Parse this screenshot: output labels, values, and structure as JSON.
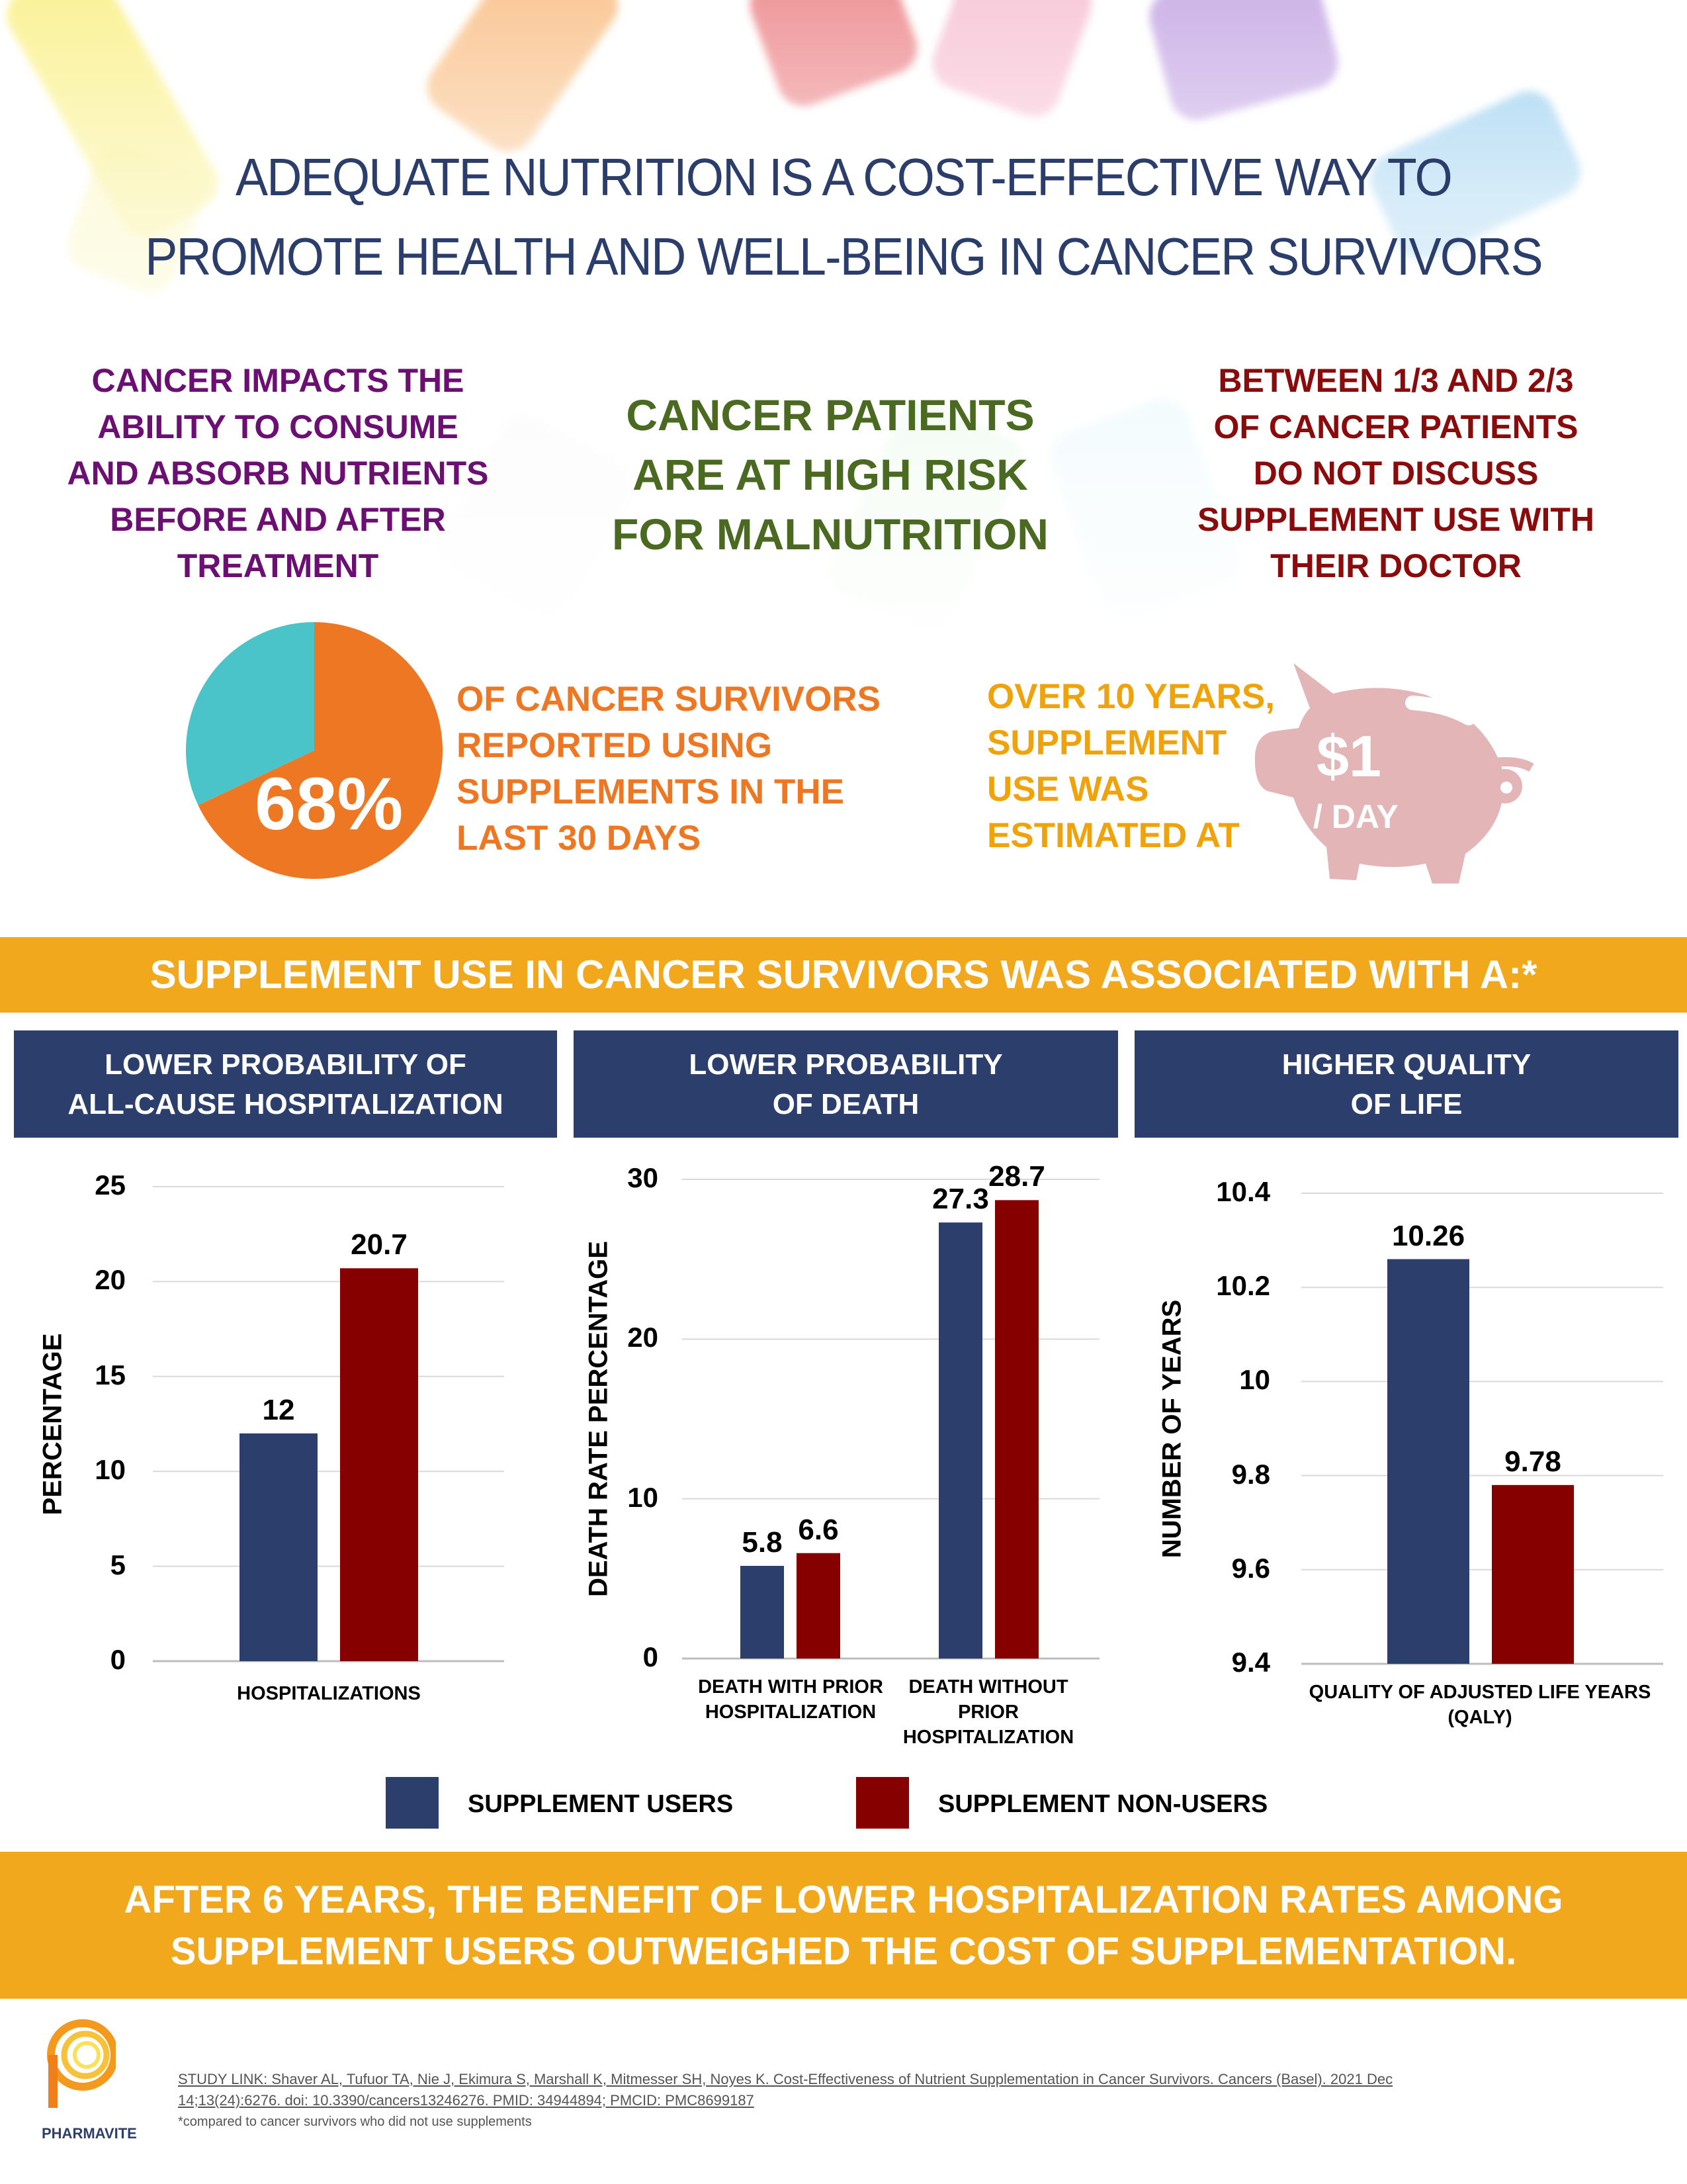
{
  "title": {
    "line1": "ADEQUATE NUTRITION IS A COST-EFFECTIVE WAY TO",
    "line2": "PROMOTE HEALTH AND WELL-BEING IN CANCER SURVIVORS"
  },
  "facts": {
    "left": "CANCER IMPACTS THE\nABILITY TO CONSUME\nAND ABSORB NUTRIENTS\nBEFORE AND AFTER\nTREATMENT",
    "middle": "CANCER PATIENTS\nARE AT HIGH RISK\nFOR MALNUTRITION",
    "right": "BETWEEN 1/3 AND 2/3\nOF CANCER PATIENTS\nDO NOT DISCUSS\nSUPPLEMENT USE WITH\nTHEIR DOCTOR"
  },
  "supplement_stat": {
    "percent_label": "68%",
    "percent_value": 68,
    "text": "OF CANCER SURVIVORS\nREPORTED USING\nSUPPLEMENTS IN THE\nLAST 30 DAYS",
    "colors": {
      "users": "#ee7724",
      "rest": "#4bc4c9"
    }
  },
  "cost_stat": {
    "text": "OVER 10 YEARS,\nSUPPLEMENT\nUSE WAS\nESTIMATED AT",
    "amount": "$1",
    "unit": "/ DAY",
    "icon": "piggy-bank-icon"
  },
  "banner_top": "SUPPLEMENT USE IN CANCER SURVIVORS WAS ASSOCIATED WITH A:*",
  "panels": [
    {
      "header": "LOWER PROBABILITY OF\nALL-CAUSE HOSPITALIZATION"
    },
    {
      "header": "LOWER PROBABILITY\nOF DEATH"
    },
    {
      "header": "HIGHER QUALITY\nOF LIFE"
    }
  ],
  "chart_data": [
    {
      "type": "bar",
      "ylabel": "PERCENTAGE",
      "ylim": [
        0,
        25
      ],
      "yticks": [
        "0",
        "5",
        "10",
        "15",
        "20",
        "25"
      ],
      "grid": true,
      "categories": [
        "HOSPITALIZATIONS"
      ],
      "series": [
        {
          "name": "SUPPLEMENT USERS",
          "values": [
            12
          ],
          "labels": [
            "12"
          ]
        },
        {
          "name": "SUPPLEMENT NON-USERS",
          "values": [
            20.7
          ],
          "labels": [
            "20.7"
          ]
        }
      ]
    },
    {
      "type": "bar",
      "ylabel": "DEATH RATE PERCENTAGE",
      "ylim": [
        0,
        30
      ],
      "yticks": [
        "0",
        "10",
        "20",
        "30"
      ],
      "grid": true,
      "categories": [
        "DEATH WITH PRIOR HOSPITALIZATION",
        "DEATH WITHOUT PRIOR HOSPITALIZATION"
      ],
      "series": [
        {
          "name": "SUPPLEMENT USERS",
          "values": [
            5.8,
            27.3
          ],
          "labels": [
            "5.8",
            "27.3"
          ]
        },
        {
          "name": "SUPPLEMENT NON-USERS",
          "values": [
            6.6,
            28.7
          ],
          "labels": [
            "6.6",
            "28.7"
          ]
        }
      ]
    },
    {
      "type": "bar",
      "ylabel": "NUMBER OF YEARS",
      "ylim": [
        9.4,
        10.4
      ],
      "yticks": [
        "9.4",
        "9.6",
        "9.8",
        "10",
        "10.2",
        "10.4"
      ],
      "grid": true,
      "categories": [
        "QUALITY OF ADJUSTED LIFE YEARS (QALY)"
      ],
      "series": [
        {
          "name": "SUPPLEMENT USERS",
          "values": [
            10.26
          ],
          "labels": [
            "10.26"
          ]
        },
        {
          "name": "SUPPLEMENT NON-USERS",
          "values": [
            9.78
          ],
          "labels": [
            "9.78"
          ]
        }
      ]
    }
  ],
  "legend": {
    "users": "SUPPLEMENT USERS",
    "nonusers": "SUPPLEMENT NON-USERS",
    "colors": {
      "users": "#2c3e6c",
      "nonusers": "#860000"
    },
    "position": "bottom"
  },
  "banner_bottom": "AFTER 6 YEARS, THE BENEFIT OF LOWER HOSPITALIZATION RATES AMONG\nSUPPLEMENT USERS OUTWEIGHED THE COST OF SUPPLEMENTATION.",
  "footer": {
    "logo_text": "PHARMAVITE",
    "study_link": "STUDY LINK: Shaver AL, Tufuor TA, Nie J, Ekimura S, Marshall K, Mitmesser SH, Noyes K. Cost-Effectiveness of Nutrient Supplementation in Cancer Survivors. Cancers (Basel). 2021 Dec 14;13(24):6276. doi: 10.3390/cancers13246276. PMID: 34944894; PMCID: PMC8699187",
    "footnote": "*compared to cancer survivors who did not use supplements"
  }
}
